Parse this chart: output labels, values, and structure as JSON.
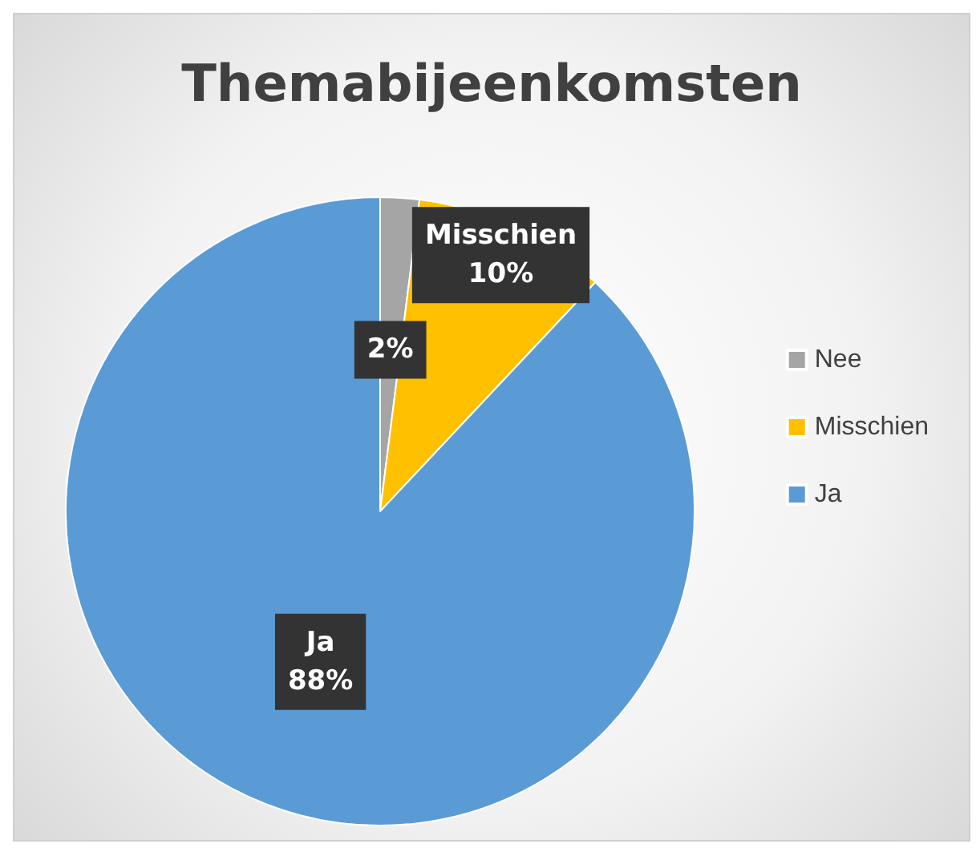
{
  "chart_data": {
    "type": "pie",
    "title": "Themabijeenkomsten",
    "categories": [
      "Nee",
      "Misschien",
      "Ja"
    ],
    "values": [
      2,
      10,
      88
    ],
    "colors": [
      "#a5a5a5",
      "#ffc000",
      "#5b9bd5"
    ],
    "value_labels": [
      "2%",
      "Misschien\n10%",
      "Ja\n88%"
    ],
    "legend": "right"
  }
}
